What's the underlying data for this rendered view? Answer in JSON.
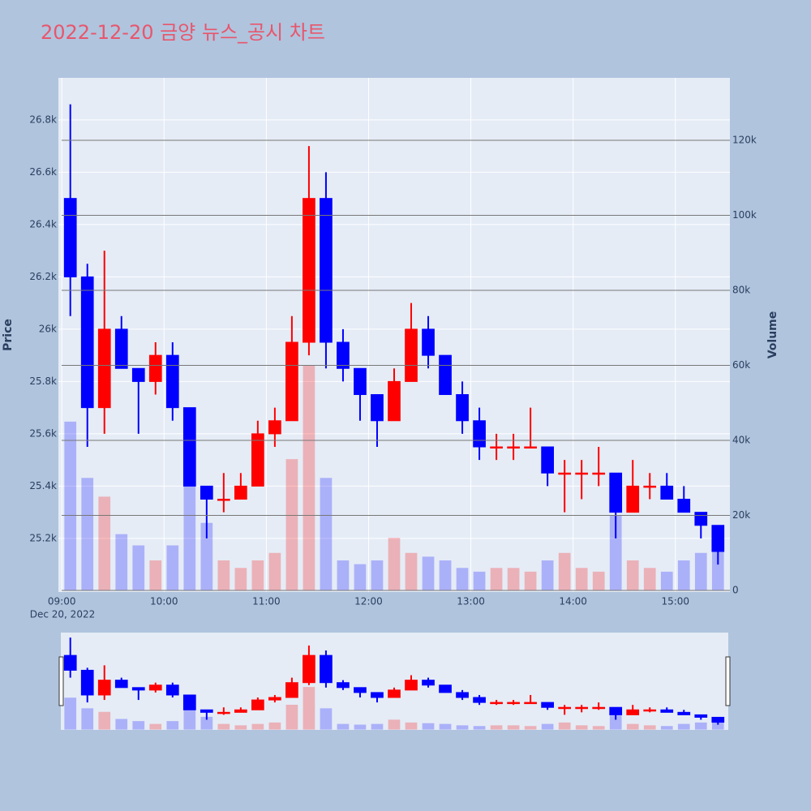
{
  "chart_data": {
    "type": "candlestick",
    "title": "2022-12-20 금양 뉴스_공시 차트",
    "x": [
      "09:05",
      "09:15",
      "09:25",
      "09:35",
      "09:45",
      "09:55",
      "10:05",
      "10:15",
      "10:25",
      "10:35",
      "10:45",
      "10:55",
      "11:05",
      "11:15",
      "11:25",
      "11:35",
      "11:45",
      "11:55",
      "12:05",
      "12:15",
      "12:25",
      "12:35",
      "12:45",
      "12:55",
      "13:05",
      "13:15",
      "13:25",
      "13:35",
      "13:45",
      "13:55",
      "14:05",
      "14:15",
      "14:25",
      "14:35",
      "14:45",
      "14:55",
      "15:05",
      "15:15",
      "15:25"
    ],
    "open": [
      26500,
      26200,
      25700,
      26000,
      25850,
      25800,
      25900,
      25700,
      25400,
      25350,
      25350,
      25400,
      25600,
      25650,
      25950,
      26500,
      25950,
      25850,
      25750,
      25650,
      25800,
      26000,
      25900,
      25750,
      25650,
      25550,
      25550,
      25550,
      25550,
      25450,
      25450,
      25450,
      25450,
      25300,
      25400,
      25400,
      25350,
      25300,
      25250
    ],
    "high": [
      26860,
      26250,
      26300,
      26050,
      25850,
      25950,
      25950,
      25700,
      25400,
      25450,
      25450,
      25650,
      25700,
      26050,
      26700,
      26600,
      26000,
      25850,
      25750,
      25850,
      26100,
      26050,
      25900,
      25800,
      25700,
      25600,
      25600,
      25700,
      25550,
      25500,
      25500,
      25550,
      25450,
      25500,
      25450,
      25450,
      25400,
      25300,
      25250
    ],
    "low": [
      26050,
      25550,
      25600,
      25850,
      25600,
      25750,
      25650,
      25400,
      25200,
      25300,
      25350,
      25400,
      25550,
      25650,
      25900,
      25850,
      25800,
      25650,
      25550,
      25650,
      25800,
      25850,
      25750,
      25600,
      25500,
      25500,
      25500,
      25550,
      25400,
      25300,
      25350,
      25400,
      25200,
      25300,
      25350,
      25350,
      25300,
      25200,
      25100
    ],
    "close": [
      26200,
      25700,
      26000,
      25850,
      25800,
      25900,
      25700,
      25400,
      25350,
      25350,
      25400,
      25600,
      25650,
      25950,
      26500,
      25950,
      25850,
      25750,
      25650,
      25800,
      26000,
      25900,
      25750,
      25650,
      25550,
      25550,
      25550,
      25550,
      25450,
      25450,
      25450,
      25450,
      25300,
      25400,
      25400,
      25350,
      25300,
      25250,
      25150
    ],
    "volume": [
      45000,
      30000,
      25000,
      15000,
      12000,
      8000,
      12000,
      40000,
      18000,
      8000,
      6000,
      8000,
      10000,
      35000,
      60000,
      30000,
      8000,
      7000,
      8000,
      14000,
      10000,
      9000,
      8000,
      6000,
      5000,
      6000,
      6000,
      5000,
      8000,
      10000,
      6000,
      5000,
      20000,
      8000,
      6000,
      5000,
      8000,
      10000,
      14000
    ],
    "increasing_color": "#ff0000",
    "decreasing_color": "#0000ff",
    "xlim": [
      "08:58",
      "15:32"
    ],
    "xticks": [
      "09:00",
      "10:00",
      "11:00",
      "12:00",
      "13:00",
      "14:00",
      "15:00"
    ],
    "x_date_label": "Dec 20, 2022",
    "ylim": [
      24995,
      26961
    ],
    "yticks": [
      {
        "value": 25200,
        "label": "25.2k"
      },
      {
        "value": 25400,
        "label": "25.4k"
      },
      {
        "value": 25600,
        "label": "25.6k"
      },
      {
        "value": 25800,
        "label": "25.8k"
      },
      {
        "value": 26000,
        "label": "26k"
      },
      {
        "value": 26200,
        "label": "26.2k"
      },
      {
        "value": 26400,
        "label": "26.4k"
      },
      {
        "value": 26600,
        "label": "26.6k"
      },
      {
        "value": 26800,
        "label": "26.8k"
      }
    ],
    "y2lim": [
      -432,
      136650
    ],
    "y2ticks": [
      0,
      {
        "value": 20000,
        "label": "20k"
      },
      {
        "value": 40000,
        "label": "40k"
      },
      {
        "value": 60000,
        "label": "60k"
      },
      {
        "value": 80000,
        "label": "80k"
      },
      {
        "value": 100000,
        "label": "100k"
      },
      {
        "value": 120000,
        "label": "120k"
      }
    ],
    "ylabel": "Price",
    "y2label": "Volume",
    "rangeslider": true
  }
}
